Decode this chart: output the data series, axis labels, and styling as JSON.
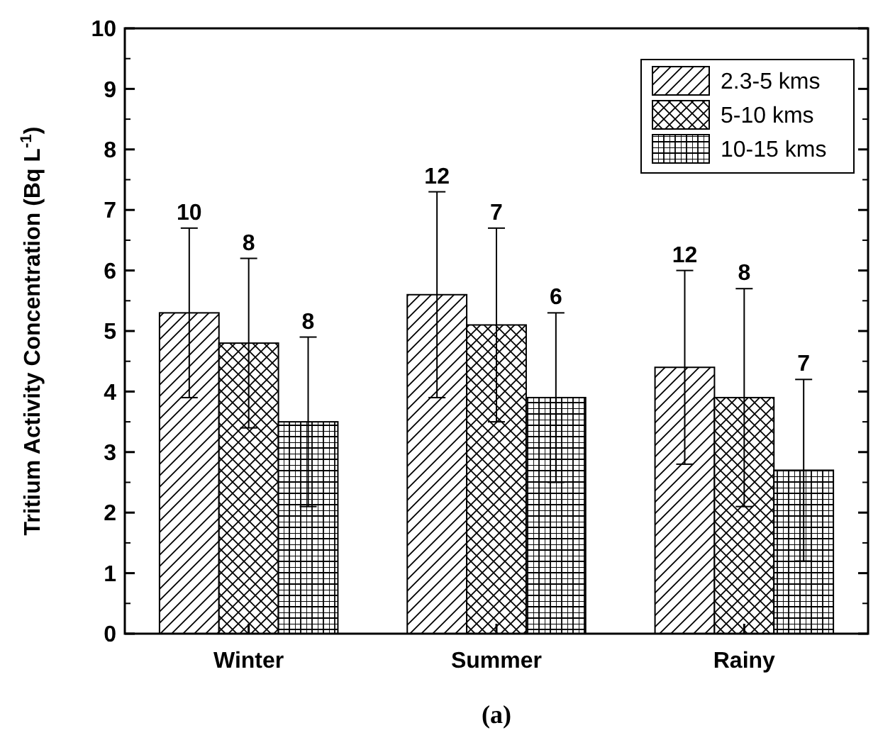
{
  "chart_data": {
    "type": "bar",
    "ylabel": "Tritium Activity Concentration (Bq L$^{-1}$)",
    "categories": [
      "Winter",
      "Summer",
      "Rainy"
    ],
    "ylim": [
      0,
      10
    ],
    "yticks": [
      0,
      1,
      2,
      3,
      4,
      5,
      6,
      7,
      8,
      9,
      10
    ],
    "legend": "top right",
    "annotations": [
      "(a)",
      "10",
      "8",
      "8",
      "12",
      "7",
      "6",
      "12",
      "8",
      "7"
    ],
    "series": [
      {
        "name": "2.3-5 kms",
        "color": "#000000",
        "values": [
          5.3,
          5.6,
          4.4
        ],
        "errors": [
          1.4,
          1.7,
          1.6
        ]
      },
      {
        "name": "5-10 kms",
        "color": "#000000",
        "values": [
          4.8,
          5.1,
          3.9
        ],
        "errors": [
          1.4,
          1.6,
          1.8
        ]
      },
      {
        "name": "10-15 kms",
        "color": "#000000",
        "values": [
          3.5,
          3.9,
          2.7
        ],
        "errors": [
          1.4,
          1.4,
          1.5
        ]
      }
    ]
  }
}
